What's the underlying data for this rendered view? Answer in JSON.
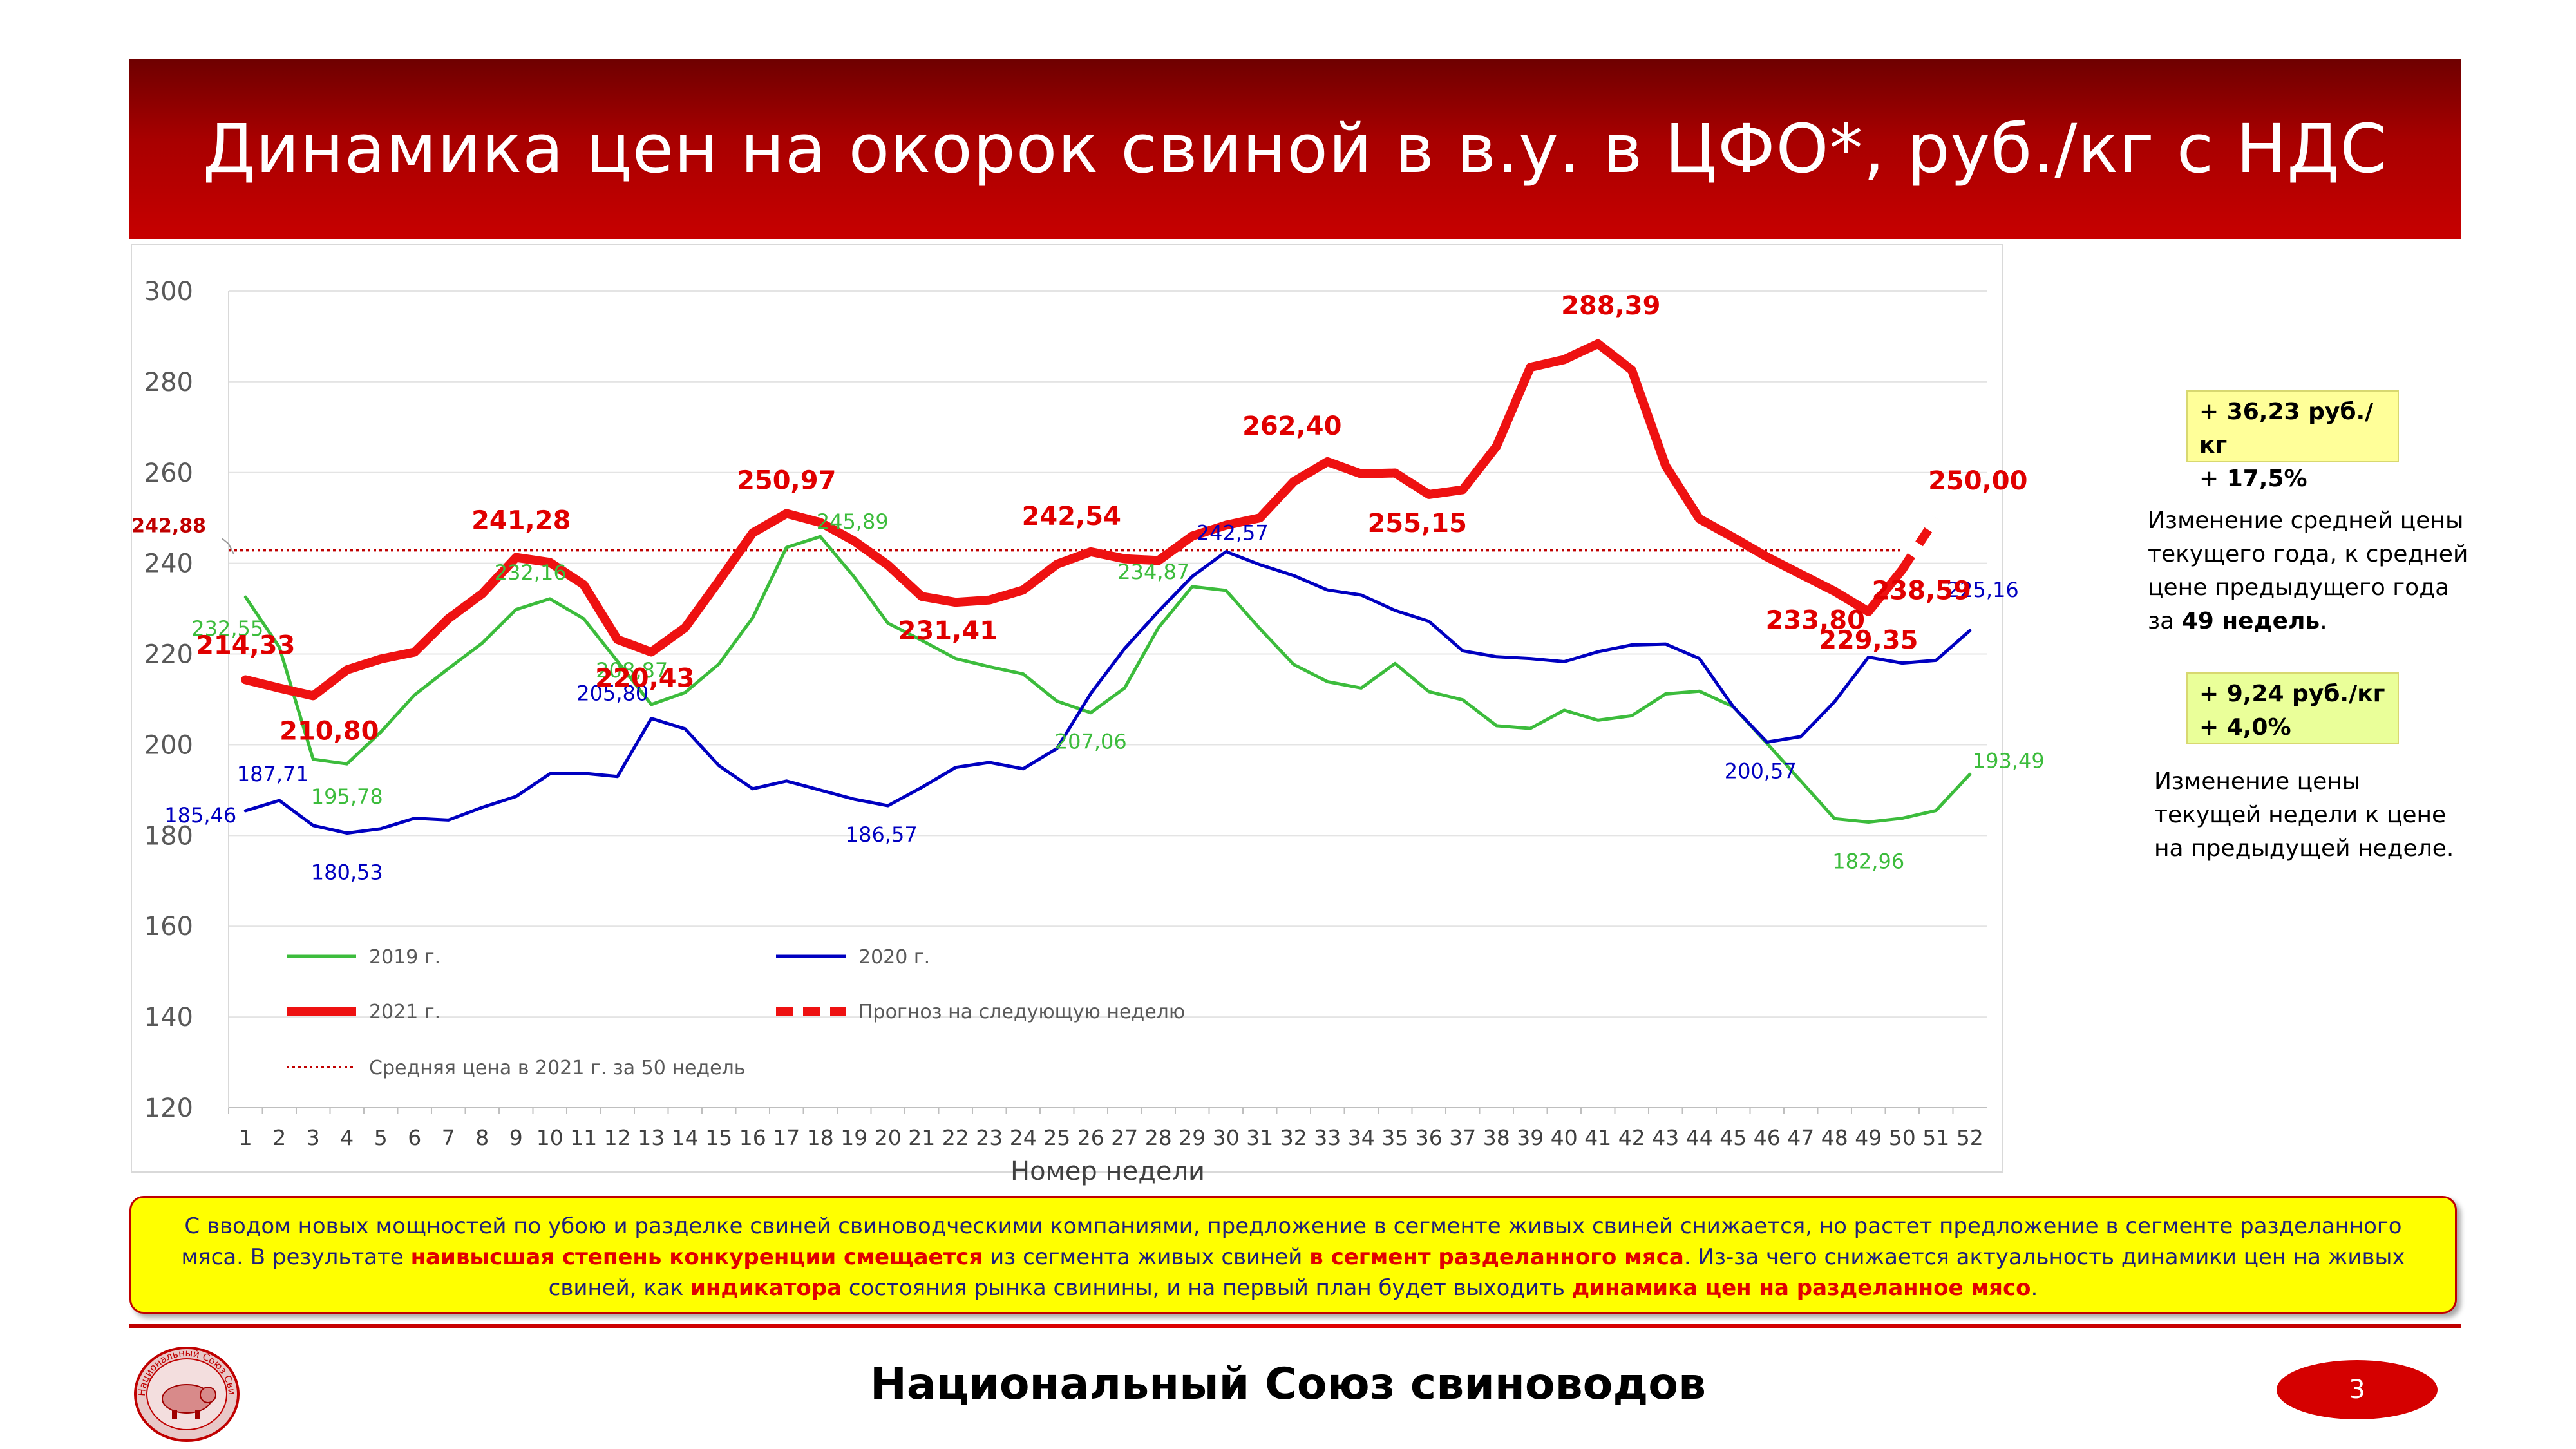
{
  "header": {
    "title": "Динамика цен на окорок свиной в в.у. в ЦФО*, руб./кг с НДС"
  },
  "colors": {
    "y2019": "#3cbc3c",
    "y2020": "#0000c0",
    "y2021": "#ee1111",
    "avg": "#c00000",
    "title_bg": "#b00000"
  },
  "chart_data": {
    "type": "line",
    "xlabel": "Номер недели",
    "ylabel": "",
    "x": [
      1,
      2,
      3,
      4,
      5,
      6,
      7,
      8,
      9,
      10,
      11,
      12,
      13,
      14,
      15,
      16,
      17,
      18,
      19,
      20,
      21,
      22,
      23,
      24,
      25,
      26,
      27,
      28,
      29,
      30,
      31,
      32,
      33,
      34,
      35,
      36,
      37,
      38,
      39,
      40,
      41,
      42,
      43,
      44,
      45,
      46,
      47,
      48,
      49,
      50,
      51,
      52
    ],
    "ylim": [
      120,
      300
    ],
    "yticks": [
      120,
      140,
      160,
      180,
      200,
      220,
      240,
      260,
      280,
      300
    ],
    "grid": true,
    "legend_position": "bottom-left (inside plot)",
    "series": [
      {
        "name": "2019 г.",
        "color": "#3cbc3c",
        "values": [
          232.55,
          221.5,
          196.8,
          195.78,
          202.8,
          211.0,
          216.8,
          222.4,
          229.8,
          232.16,
          227.8,
          218.4,
          208.87,
          211.5,
          217.8,
          228.0,
          243.5,
          245.89,
          237.0,
          226.8,
          223.0,
          219.0,
          217.2,
          215.6,
          209.6,
          207.06,
          212.5,
          225.8,
          234.87,
          234.0,
          225.6,
          217.7,
          213.9,
          212.5,
          217.9,
          211.7,
          209.9,
          204.2,
          203.6,
          207.6,
          205.4,
          206.4,
          211.2,
          211.8,
          208.4,
          200.3,
          192.0,
          183.7,
          182.96,
          183.8,
          185.5,
          193.49
        ]
      },
      {
        "name": "2020 г.",
        "color": "#0000c0",
        "values": [
          185.46,
          187.71,
          182.2,
          180.53,
          181.5,
          183.8,
          183.4,
          186.2,
          188.6,
          193.6,
          193.7,
          193.0,
          205.8,
          203.5,
          195.4,
          190.3,
          192.0,
          190.0,
          188.0,
          186.57,
          190.6,
          195.0,
          196.1,
          194.7,
          199.2,
          211.3,
          221.2,
          229.4,
          237.1,
          242.57,
          239.7,
          237.3,
          234.1,
          233.0,
          229.6,
          227.2,
          220.7,
          219.4,
          219.0,
          218.3,
          220.5,
          222.0,
          222.2,
          219.0,
          208.4,
          200.57,
          201.8,
          209.5,
          219.3,
          218.0,
          218.6,
          225.16
        ]
      },
      {
        "name": "2021 г.",
        "color": "#ee1111",
        "values": [
          214.33,
          212.5,
          210.8,
          216.5,
          218.9,
          220.43,
          227.8,
          233.3,
          241.28,
          240.2,
          235.3,
          223.2,
          220.43,
          225.8,
          236.1,
          246.7,
          250.97,
          249.0,
          244.9,
          239.6,
          232.7,
          231.41,
          231.9,
          234.1,
          239.8,
          242.54,
          241.0,
          240.6,
          246.0,
          248.4,
          250.0,
          258.0,
          262.4,
          259.7,
          259.9,
          255.15,
          256.2,
          265.8,
          283.2,
          284.9,
          288.39,
          282.6,
          261.5,
          249.8,
          245.7,
          241.4,
          237.6,
          233.8,
          229.35,
          238.59,
          null,
          null
        ]
      },
      {
        "name": "Прогноз на следующую неделю",
        "color": "#ee1111",
        "dashed": true,
        "values": [
          null,
          null,
          null,
          null,
          null,
          null,
          null,
          null,
          null,
          null,
          null,
          null,
          null,
          null,
          null,
          null,
          null,
          null,
          null,
          null,
          null,
          null,
          null,
          null,
          null,
          null,
          null,
          null,
          null,
          null,
          null,
          null,
          null,
          null,
          null,
          null,
          null,
          null,
          null,
          null,
          null,
          null,
          null,
          null,
          null,
          null,
          null,
          null,
          null,
          238.59,
          250.0,
          null
        ]
      }
    ],
    "average_line": {
      "name": "Средняя цена в 2021 г. за 50 недель",
      "value": 242.88,
      "label": "242,88"
    },
    "data_labels": {
      "y2019": [
        {
          "week": 1,
          "text": "232,55"
        },
        {
          "week": 4,
          "text": "195,78"
        },
        {
          "week": 10,
          "text": "232,16"
        },
        {
          "week": 13,
          "text": "208,87"
        },
        {
          "week": 18,
          "text": "245,89"
        },
        {
          "week": 26,
          "text": "207,06"
        },
        {
          "week": 29,
          "text": "234,87"
        },
        {
          "week": 49,
          "text": "182,96"
        },
        {
          "week": 52,
          "text": "193,49"
        }
      ],
      "y2020": [
        {
          "week": 1,
          "text": "185,46"
        },
        {
          "week": 2,
          "text": "187,71"
        },
        {
          "week": 4,
          "text": "180,53"
        },
        {
          "week": 13,
          "text": "205,80"
        },
        {
          "week": 20,
          "text": "186,57"
        },
        {
          "week": 30,
          "text": "242,57"
        },
        {
          "week": 46,
          "text": "200,57"
        },
        {
          "week": 52,
          "text": "225,16"
        }
      ],
      "y2021": [
        {
          "week": 1,
          "text": "214,33"
        },
        {
          "week": 3,
          "text": "210,80"
        },
        {
          "week": 9,
          "text": "241,28"
        },
        {
          "week": 13,
          "text": "220,43"
        },
        {
          "week": 17,
          "text": "250,97"
        },
        {
          "week": 22,
          "text": "231,41"
        },
        {
          "week": 26,
          "text": "242,54"
        },
        {
          "week": 33,
          "text": "262,40"
        },
        {
          "week": 36,
          "text": "255,15"
        },
        {
          "week": 41,
          "text": "288,39"
        },
        {
          "week": 48,
          "text": "233,80"
        },
        {
          "week": 49,
          "text": "229,35"
        },
        {
          "week": 50,
          "text": "238,59"
        },
        {
          "week": 51,
          "text": "250,00"
        }
      ]
    }
  },
  "sidebar": {
    "box1": {
      "line1": "+ 36,23 руб./кг",
      "line2": "+ 17,5%"
    },
    "note1": {
      "text": "Изменение средней цены текущего года, к средней цене предыдущего года за ",
      "bold": "49 недель",
      "tail": "."
    },
    "box2": {
      "line1": "+ 9,24 руб./кг",
      "line2": "+ 4,0%"
    },
    "note2": "Изменение цены текущей недели к цене на предыдущей неделе."
  },
  "summary": {
    "p1": "С вводом новых мощностей по убою и разделке свиней свиноводческими компаниями, предложение в сегменте живых свиней снижается, но растет предложение в сегменте разделанного мяса.  В результате ",
    "h1": "наивысшая степень конкуренции смещается",
    "p2": " из сегмента живых свиней ",
    "h2": "в сегмент разделанного мяса",
    "p3": ". Из-за чего снижается актуальность динамики цен на живых свиней, как ",
    "h3": "индикатора",
    "p4": " состояния рынка свинины, и на первый план будет выходить ",
    "h4": "динамика цен на разделанное мясо",
    "p5": "."
  },
  "footer": {
    "organization": "Национальный Союз свиноводов",
    "page_number": "3",
    "logo_text": "Национальный Союз Свиноводов",
    "logo_icon": "pig-icon"
  }
}
